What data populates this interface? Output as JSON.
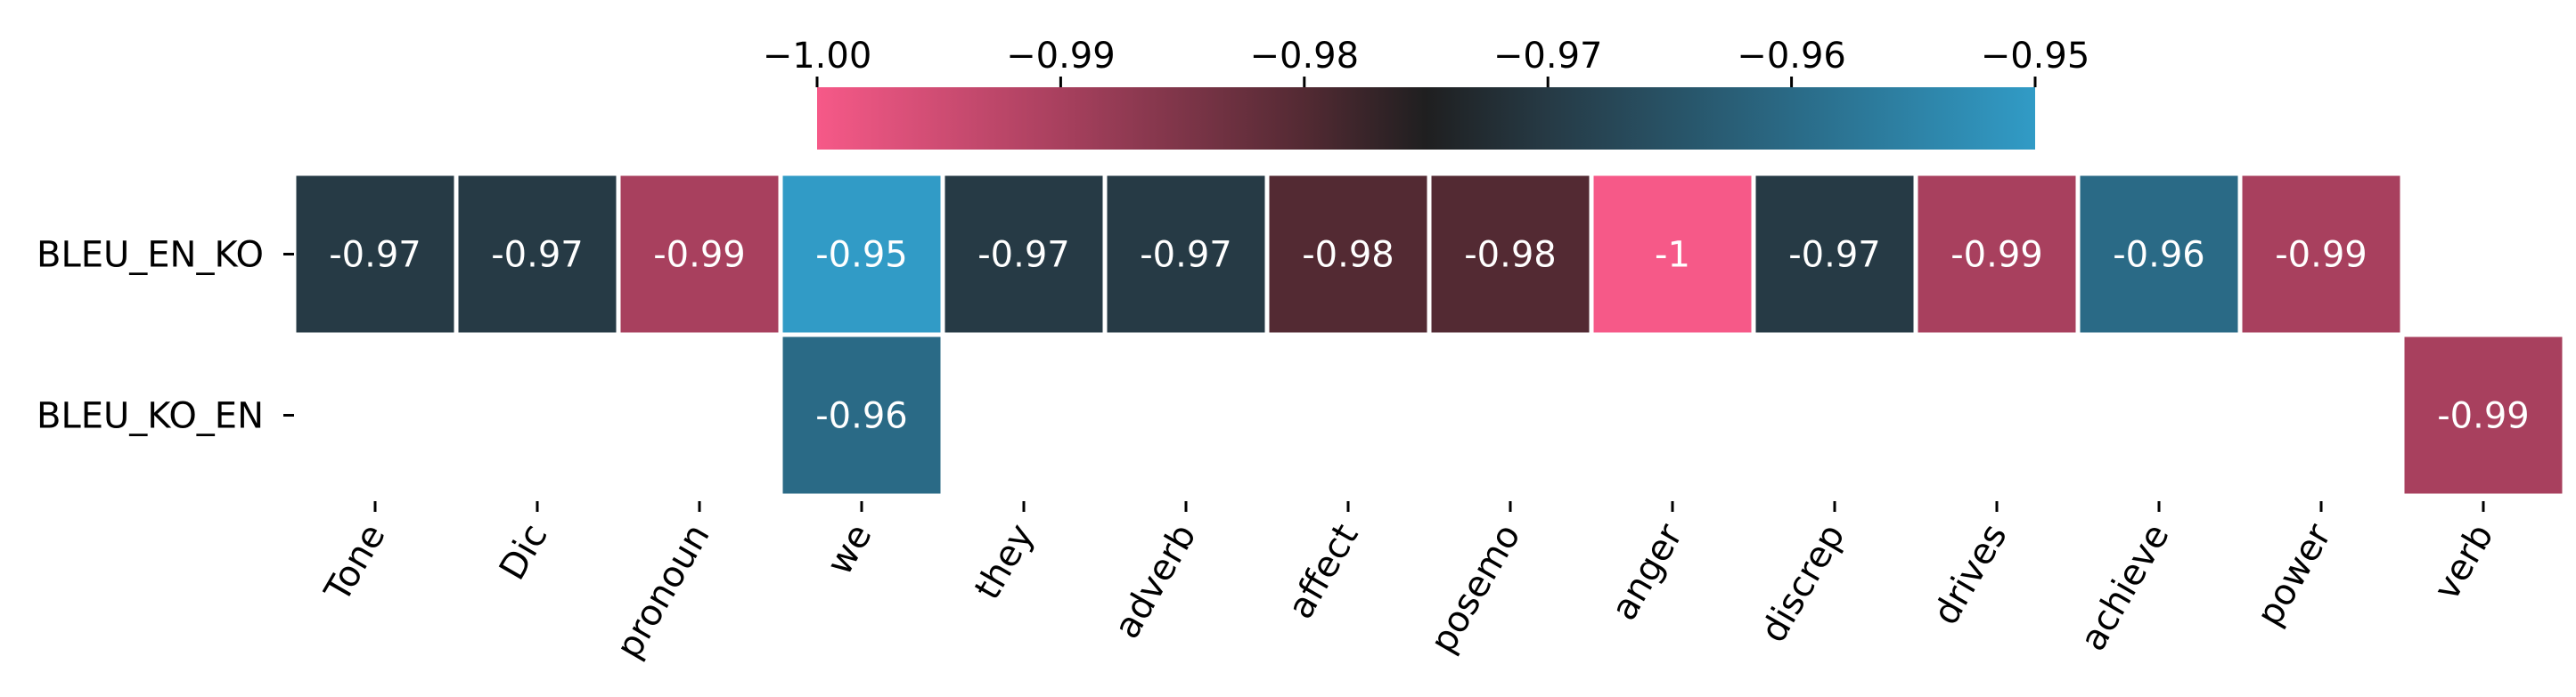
{
  "chart_data": {
    "type": "heatmap",
    "rows": [
      "BLEU_EN_KO",
      "BLEU_KO_EN"
    ],
    "columns": [
      "Tone",
      "Dic",
      "pronoun",
      "we",
      "they",
      "adverb",
      "affect",
      "posemo",
      "anger",
      "discrep",
      "drives",
      "achieve",
      "power",
      "verb"
    ],
    "cells": [
      {
        "row": 0,
        "col": 0,
        "value": -0.97,
        "label": "-0.97"
      },
      {
        "row": 0,
        "col": 1,
        "value": -0.97,
        "label": "-0.97"
      },
      {
        "row": 0,
        "col": 2,
        "value": -0.99,
        "label": "-0.99"
      },
      {
        "row": 0,
        "col": 3,
        "value": -0.95,
        "label": "-0.95"
      },
      {
        "row": 0,
        "col": 4,
        "value": -0.97,
        "label": "-0.97"
      },
      {
        "row": 0,
        "col": 5,
        "value": -0.97,
        "label": "-0.97"
      },
      {
        "row": 0,
        "col": 6,
        "value": -0.98,
        "label": "-0.98"
      },
      {
        "row": 0,
        "col": 7,
        "value": -0.98,
        "label": "-0.98"
      },
      {
        "row": 0,
        "col": 8,
        "value": -1.0,
        "label": "-1"
      },
      {
        "row": 0,
        "col": 9,
        "value": -0.97,
        "label": "-0.97"
      },
      {
        "row": 0,
        "col": 10,
        "value": -0.99,
        "label": "-0.99"
      },
      {
        "row": 0,
        "col": 11,
        "value": -0.96,
        "label": "-0.96"
      },
      {
        "row": 0,
        "col": 12,
        "value": -0.99,
        "label": "-0.99"
      },
      {
        "row": 1,
        "col": 3,
        "value": -0.96,
        "label": "-0.96"
      },
      {
        "row": 1,
        "col": 13,
        "value": -0.99,
        "label": "-0.99"
      }
    ],
    "colorbar": {
      "range": [
        -1.0,
        -0.95
      ],
      "ticks": [
        -1.0,
        -0.99,
        -0.98,
        -0.97,
        -0.96,
        -0.95
      ],
      "tick_labels": [
        "−1.00",
        "−0.99",
        "−0.98",
        "−0.97",
        "−0.96",
        "−0.95"
      ],
      "placement": "top"
    },
    "colormap_stops": [
      {
        "value": -1.0,
        "color": "#f65988"
      },
      {
        "value": -0.99,
        "color": "#a8405e"
      },
      {
        "value": -0.98,
        "color": "#532a33"
      },
      {
        "value": -0.975,
        "color": "#1f1f20"
      },
      {
        "value": -0.97,
        "color": "#263a45"
      },
      {
        "value": -0.96,
        "color": "#2a6a86"
      },
      {
        "value": -0.95,
        "color": "#319bc6"
      }
    ],
    "missing_cells": "blank"
  }
}
